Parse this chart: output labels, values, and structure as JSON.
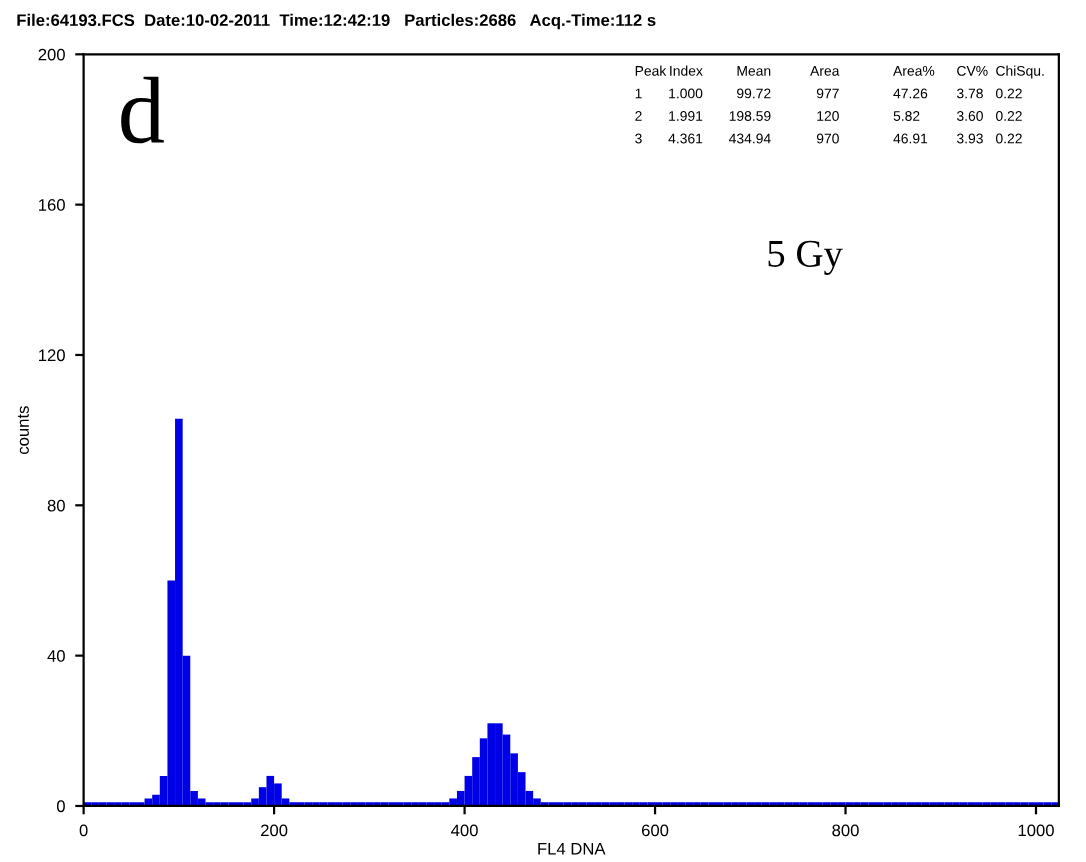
{
  "chart_data": {
    "type": "histogram",
    "title": "File:64193.FCS  Date:10-02-2011  Time:12:42:19   Particles:2686   Acq.-Time:112 s",
    "xlabel": "FL4 DNA",
    "ylabel": "counts",
    "annotations": [
      "d",
      "5 Gy",
      "Peak",
      "Index",
      "Mean",
      "Area",
      "Area%",
      "CV%",
      "ChiSqu.",
      "1",
      "1.000",
      "99.72",
      "977",
      "47.26",
      "3.78",
      "0.22",
      "2",
      "1.991",
      "198.59",
      "120",
      "5.82",
      "3.60",
      "0.22",
      "3",
      "4.361",
      "434.94",
      "970",
      "46.91",
      "3.93",
      "0.22"
    ],
    "bins": [
      0,
      8,
      16,
      24,
      32,
      40,
      48,
      56,
      64,
      72,
      80,
      88,
      96,
      104,
      112,
      120,
      128,
      136,
      144,
      152,
      160,
      168,
      176,
      184,
      192,
      200,
      208,
      216,
      224,
      232,
      240,
      248,
      256,
      264,
      272,
      280,
      288,
      296,
      304,
      312,
      320,
      328,
      336,
      344,
      352,
      360,
      368,
      376,
      384,
      392,
      400,
      408,
      416,
      424,
      432,
      440,
      448,
      456,
      464,
      472,
      480,
      488,
      496,
      504,
      512,
      520,
      528,
      536,
      544,
      552,
      560,
      568,
      576,
      584,
      592,
      600,
      608,
      616,
      624,
      632,
      640,
      648,
      656,
      664,
      672,
      680,
      688,
      696,
      704,
      712,
      720,
      728,
      736,
      744,
      752,
      760,
      768,
      776,
      784,
      792,
      800,
      808,
      816,
      824,
      832,
      840,
      848,
      856,
      864,
      872,
      880,
      888,
      896,
      904,
      912,
      920,
      928,
      936,
      944,
      952,
      960,
      968,
      976,
      984,
      992,
      1000,
      1008,
      1016,
      1024
    ],
    "values": [
      1,
      1,
      1,
      1,
      1,
      1,
      1,
      1,
      2,
      3,
      8,
      60,
      103,
      40,
      4,
      2,
      1,
      1,
      1,
      1,
      1,
      1,
      2,
      5,
      8,
      6,
      2,
      1,
      1,
      1,
      1,
      1,
      1,
      1,
      1,
      1,
      1,
      1,
      1,
      1,
      1,
      1,
      1,
      1,
      1,
      1,
      1,
      1,
      2,
      4,
      8,
      13,
      18,
      22,
      22,
      19,
      14,
      9,
      4,
      2,
      1,
      1,
      1,
      1,
      1,
      1,
      1,
      1,
      1,
      1,
      1,
      1,
      1,
      1,
      1,
      1,
      1,
      1,
      1,
      1,
      1,
      1,
      1,
      1,
      1,
      1,
      1,
      1,
      1,
      1,
      1,
      1,
      1,
      1,
      1,
      1,
      1,
      1,
      1,
      1,
      1,
      1,
      1,
      1,
      1,
      1,
      1,
      1,
      1,
      1,
      1,
      1,
      1,
      1,
      1,
      1,
      1,
      1,
      1,
      1,
      1,
      1,
      1,
      1,
      1,
      1,
      1,
      1
    ],
    "color": "#0000e6",
    "xlim": [
      0,
      1024
    ],
    "ylim": [
      0,
      200
    ],
    "xticks": [
      0,
      200,
      400,
      600,
      800,
      1000
    ],
    "yticks": [
      0,
      40,
      80,
      120,
      160,
      200
    ],
    "grid": false,
    "legend": false
  }
}
